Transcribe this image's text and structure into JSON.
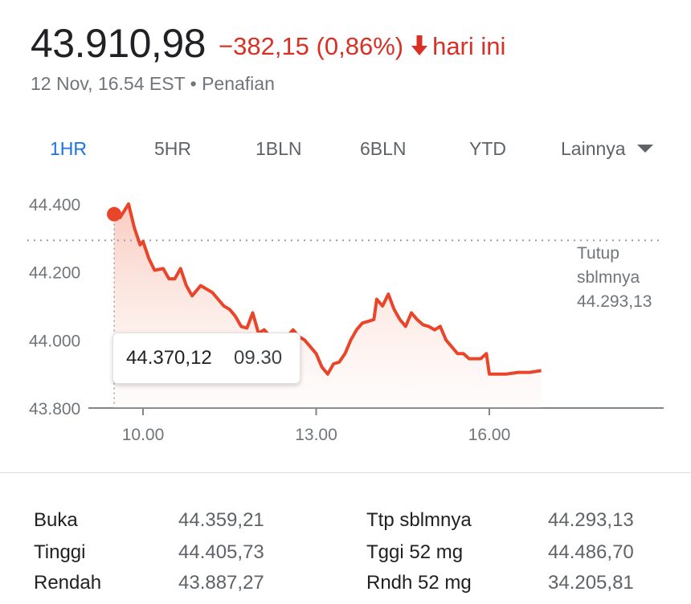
{
  "quote": {
    "price": "43.910,98",
    "change": "−382,15 (0,86%)",
    "change_suffix": "hari ini",
    "timestamp": "12 Nov, 16.54 EST",
    "separator": "•",
    "disclaimer": "Penafian"
  },
  "tabs": [
    {
      "label": "1HR",
      "active": true
    },
    {
      "label": "5HR",
      "active": false
    },
    {
      "label": "1BLN",
      "active": false
    },
    {
      "label": "6BLN",
      "active": false
    },
    {
      "label": "YTD",
      "active": false
    },
    {
      "label": "Lainnya",
      "active": false
    }
  ],
  "colors": {
    "line": "#e8452a",
    "negative": "#d93025",
    "active_tab": "#1a73e8"
  },
  "tooltip": {
    "value": "44.370,12",
    "time": "09.30"
  },
  "chart_data": {
    "type": "area",
    "ylim": [
      43800,
      44400
    ],
    "y_ticks": [
      "44.400",
      "44.200",
      "44.000",
      "43.800"
    ],
    "x_ticks": [
      "10.00",
      "13.00",
      "16.00"
    ],
    "prev_close": {
      "value": 44293.13,
      "label_line1": "Tutup",
      "label_line2": "sblmnya",
      "label_value": "44.293,13"
    },
    "marker": {
      "x": 9.5,
      "y": 44370.12
    },
    "series": [
      {
        "x": [
          9.5,
          9.6,
          9.75,
          9.85,
          9.95,
          10.0,
          10.1,
          10.2,
          10.35,
          10.45,
          10.55,
          10.65,
          10.75,
          10.85,
          11.0,
          11.1,
          11.2,
          11.3,
          11.4,
          11.5,
          11.6,
          11.7,
          11.8,
          11.9,
          12.0,
          12.1,
          12.2,
          12.3,
          12.4,
          12.5,
          12.6,
          12.7,
          12.8,
          12.9,
          13.0,
          13.1,
          13.2,
          13.3,
          13.4,
          13.5,
          13.6,
          13.7,
          13.8,
          13.9,
          14.0,
          14.05,
          14.15,
          14.25,
          14.35,
          14.45,
          14.55,
          14.65,
          14.75,
          14.85,
          14.95,
          15.05,
          15.15,
          15.25,
          15.35,
          15.45,
          15.55,
          15.65,
          15.75,
          15.85,
          15.95,
          16.0,
          16.1,
          16.3,
          16.5,
          16.7,
          16.9
        ],
        "y": [
          44370,
          44360,
          44400,
          44330,
          44280,
          44290,
          44240,
          44205,
          44210,
          44180,
          44180,
          44210,
          44160,
          44130,
          44160,
          44150,
          44140,
          44120,
          44100,
          44090,
          44070,
          44040,
          44035,
          44080,
          44020,
          44030,
          44010,
          44000,
          44000,
          44010,
          44030,
          44010,
          44000,
          43980,
          43960,
          43920,
          43900,
          43930,
          43935,
          43960,
          44000,
          44030,
          44050,
          44055,
          44060,
          44120,
          44100,
          44135,
          44090,
          44060,
          44040,
          44080,
          44060,
          44045,
          44040,
          44030,
          44040,
          44000,
          43980,
          43960,
          43960,
          43945,
          43945,
          43945,
          43960,
          43900,
          43900,
          43900,
          43905,
          43905,
          43910
        ]
      }
    ]
  },
  "stats": {
    "left": [
      {
        "label": "Buka",
        "value": "44.359,21"
      },
      {
        "label": "Tinggi",
        "value": "44.405,73"
      },
      {
        "label": "Rendah",
        "value": "43.887,27"
      }
    ],
    "right": [
      {
        "label": "Ttp sblmnya",
        "value": "44.293,13"
      },
      {
        "label": "Tggi 52 mg",
        "value": "44.486,70"
      },
      {
        "label": "Rndh 52 mg",
        "value": "34.205,81"
      }
    ]
  }
}
